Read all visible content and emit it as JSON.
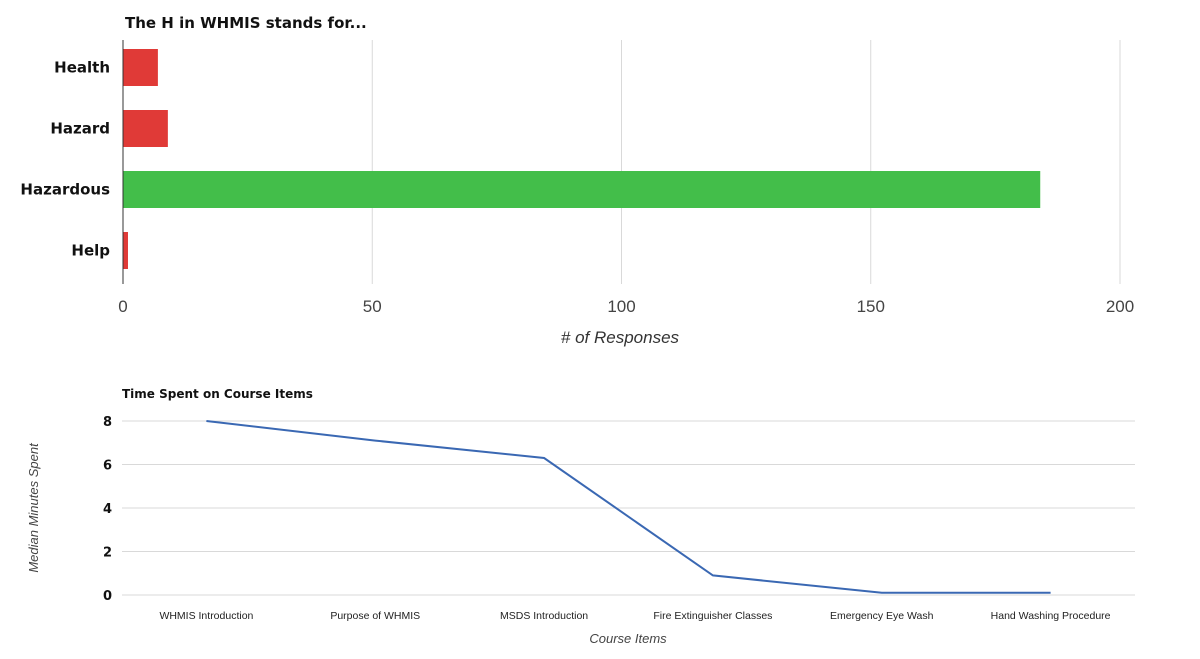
{
  "chart_data": [
    {
      "type": "bar",
      "orientation": "horizontal",
      "title": "The H in WHMIS stands for...",
      "categories": [
        "Health",
        "Hazard",
        "Hazardous",
        "Help"
      ],
      "values": [
        7,
        9,
        184,
        1
      ],
      "colors": [
        "#e03a37",
        "#e03a37",
        "#43be4a",
        "#e03a37"
      ],
      "xlabel": "# of Responses",
      "ylabel": "",
      "xlim": [
        0,
        200
      ],
      "xticks": [
        "0",
        "50",
        "100",
        "150",
        "200"
      ],
      "grid": true
    },
    {
      "type": "line",
      "title": "Time Spent on Course Items",
      "categories": [
        "WHMIS Introduction",
        "Purpose of WHMIS",
        "MSDS Introduction",
        "Fire Extinguisher Classes",
        "Emergency Eye Wash",
        "Hand Washing Procedure"
      ],
      "values": [
        8,
        7.1,
        6.3,
        0.9,
        0.1,
        0.1
      ],
      "color": "#3a68b3",
      "xlabel": "Course Items",
      "ylabel": "Median Minutes Spent",
      "ylim": [
        0,
        8
      ],
      "yticks": [
        "0",
        "2",
        "4",
        "6",
        "8"
      ],
      "grid": true
    }
  ]
}
